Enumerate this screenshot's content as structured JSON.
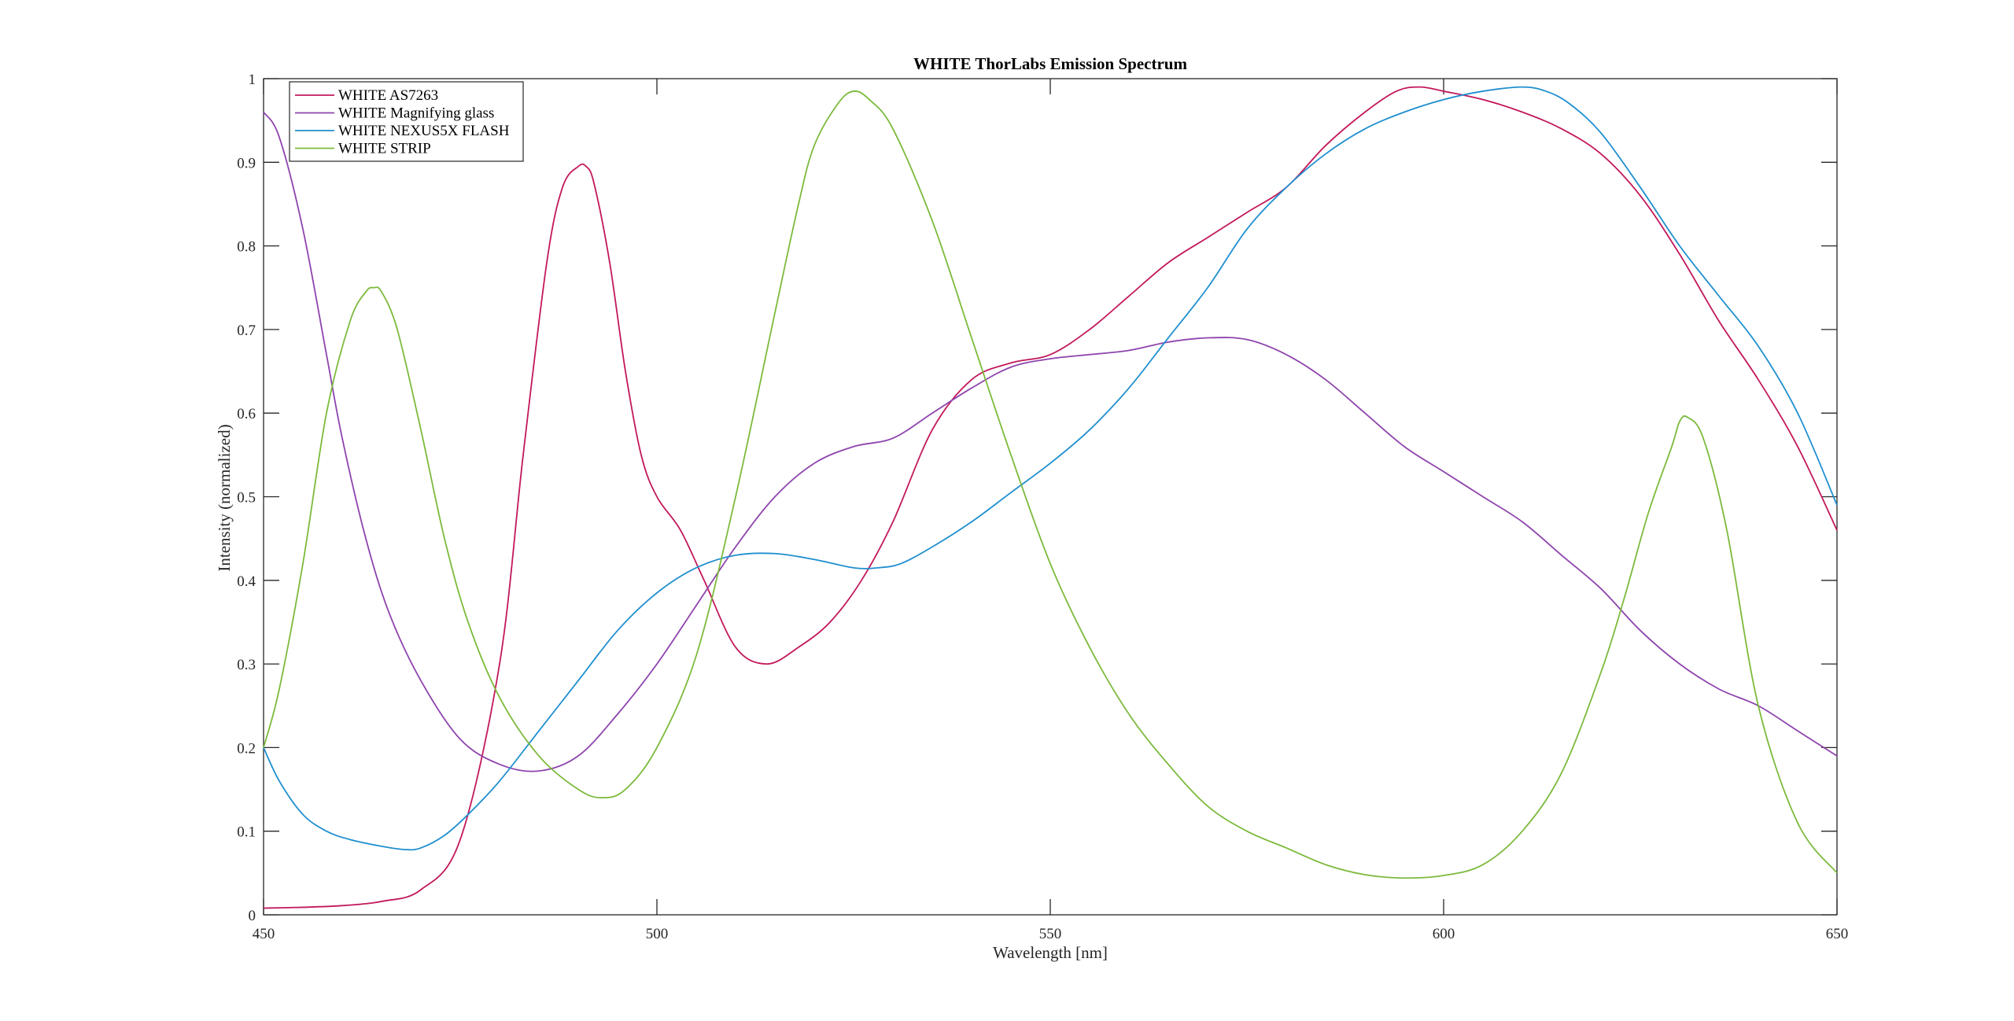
{
  "chart_data": {
    "type": "line",
    "title": "WHITE ThorLabs Emission Spectrum",
    "xlabel": "Wavelength [nm]",
    "ylabel": "Intensity (normalized)",
    "xlim": [
      450,
      650
    ],
    "ylim": [
      0,
      1
    ],
    "xticks": [
      450,
      500,
      550,
      600,
      650
    ],
    "yticks": [
      0,
      0.1,
      0.2,
      0.3,
      0.4,
      0.5,
      0.6,
      0.7,
      0.8,
      0.9,
      1
    ],
    "xtick_labels": [
      "450",
      "500",
      "550",
      "600",
      "650"
    ],
    "ytick_labels": [
      "0",
      "0.1",
      "0.2",
      "0.3",
      "0.4",
      "0.5",
      "0.6",
      "0.7",
      "0.8",
      "0.9",
      "1"
    ],
    "grid": false,
    "legend_position": "top-left",
    "series": [
      {
        "name": "WHITE AS7263",
        "color": "#c2185b",
        "x": [
          450,
          455,
          460,
          465,
          470,
          475,
          480,
          483,
          486,
          488,
          490,
          491,
          492,
          494,
          496,
          498,
          500,
          503,
          506,
          510,
          514,
          518,
          522,
          526,
          530,
          535,
          540,
          545,
          550,
          555,
          560,
          565,
          570,
          575,
          580,
          585,
          590,
          594,
          597,
          600,
          605,
          610,
          615,
          620,
          625,
          630,
          635,
          640,
          645,
          650
        ],
        "y": [
          0.008,
          0.009,
          0.011,
          0.016,
          0.03,
          0.09,
          0.3,
          0.55,
          0.78,
          0.87,
          0.895,
          0.895,
          0.875,
          0.78,
          0.65,
          0.55,
          0.5,
          0.46,
          0.4,
          0.32,
          0.3,
          0.32,
          0.35,
          0.4,
          0.47,
          0.58,
          0.64,
          0.66,
          0.67,
          0.7,
          0.74,
          0.78,
          0.81,
          0.84,
          0.87,
          0.92,
          0.96,
          0.985,
          0.99,
          0.985,
          0.975,
          0.96,
          0.94,
          0.91,
          0.86,
          0.79,
          0.71,
          0.64,
          0.56,
          0.46
        ]
      },
      {
        "name": "WHITE Magnifying glass",
        "color": "#8e44ad",
        "x": [
          450,
          452,
          455,
          458,
          460,
          463,
          466,
          470,
          475,
          480,
          485,
          490,
          495,
          500,
          505,
          510,
          515,
          520,
          525,
          530,
          535,
          540,
          545,
          550,
          555,
          560,
          565,
          570,
          575,
          580,
          585,
          590,
          595,
          600,
          605,
          610,
          615,
          620,
          625,
          630,
          635,
          640,
          645,
          650
        ],
        "y": [
          0.96,
          0.93,
          0.82,
          0.67,
          0.57,
          0.45,
          0.36,
          0.28,
          0.21,
          0.18,
          0.172,
          0.19,
          0.24,
          0.3,
          0.37,
          0.44,
          0.5,
          0.54,
          0.56,
          0.57,
          0.6,
          0.63,
          0.655,
          0.665,
          0.67,
          0.675,
          0.685,
          0.69,
          0.688,
          0.67,
          0.64,
          0.6,
          0.56,
          0.53,
          0.5,
          0.47,
          0.43,
          0.39,
          0.34,
          0.3,
          0.27,
          0.25,
          0.22,
          0.19
        ]
      },
      {
        "name": "WHITE NEXUS5X FLASH",
        "color": "#1f8fcf",
        "x": [
          450,
          452,
          455,
          458,
          461,
          465,
          468,
          470,
          473,
          476,
          480,
          485,
          490,
          495,
          500,
          505,
          510,
          515,
          520,
          525,
          528,
          531,
          535,
          540,
          545,
          550,
          555,
          560,
          565,
          570,
          575,
          580,
          585,
          590,
          595,
          600,
          605,
          610,
          613,
          616,
          620,
          625,
          630,
          635,
          640,
          645,
          650
        ],
        "y": [
          0.2,
          0.16,
          0.12,
          0.1,
          0.09,
          0.082,
          0.078,
          0.08,
          0.095,
          0.12,
          0.16,
          0.22,
          0.28,
          0.34,
          0.385,
          0.415,
          0.43,
          0.432,
          0.425,
          0.415,
          0.415,
          0.42,
          0.44,
          0.47,
          0.505,
          0.54,
          0.58,
          0.63,
          0.69,
          0.75,
          0.82,
          0.87,
          0.91,
          0.94,
          0.96,
          0.975,
          0.985,
          0.99,
          0.985,
          0.97,
          0.935,
          0.87,
          0.8,
          0.74,
          0.68,
          0.6,
          0.49
        ]
      },
      {
        "name": "WHITE STRIP",
        "color": "#7cba3c",
        "x": [
          450,
          452,
          455,
          458,
          461,
          463,
          464,
          465,
          467,
          470,
          473,
          476,
          480,
          485,
          490,
          493,
          496,
          500,
          505,
          510,
          515,
          518,
          520,
          523,
          525,
          527,
          530,
          535,
          540,
          545,
          550,
          555,
          560,
          565,
          570,
          575,
          580,
          585,
          590,
          595,
          600,
          605,
          610,
          615,
          620,
          623,
          626,
          629,
          630,
          631,
          633,
          636,
          640,
          645,
          650
        ],
        "y": [
          0.2,
          0.27,
          0.42,
          0.6,
          0.71,
          0.745,
          0.75,
          0.745,
          0.7,
          0.58,
          0.45,
          0.35,
          0.26,
          0.19,
          0.15,
          0.14,
          0.15,
          0.2,
          0.31,
          0.5,
          0.72,
          0.85,
          0.92,
          0.97,
          0.985,
          0.975,
          0.94,
          0.83,
          0.69,
          0.55,
          0.42,
          0.32,
          0.24,
          0.18,
          0.13,
          0.1,
          0.08,
          0.06,
          0.048,
          0.044,
          0.047,
          0.06,
          0.1,
          0.17,
          0.29,
          0.38,
          0.48,
          0.56,
          0.59,
          0.595,
          0.57,
          0.46,
          0.25,
          0.11,
          0.05
        ]
      }
    ]
  }
}
